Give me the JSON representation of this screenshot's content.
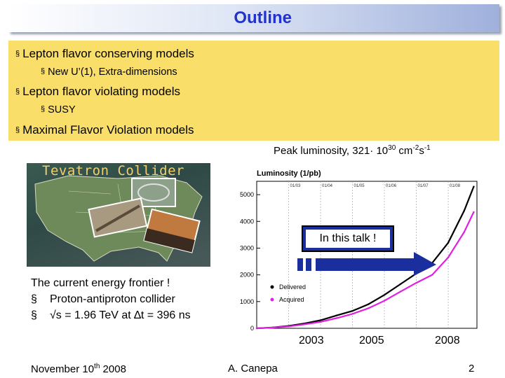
{
  "slide": {
    "title": "Outline",
    "bullets": [
      {
        "text": "Lepton flavor conserving models",
        "sub": "New U’(1), Extra-dimensions"
      },
      {
        "text": "Lepton flavor violating models",
        "sub": "SUSY"
      },
      {
        "text": "Maximal Flavor Violation models",
        "sub": ""
      }
    ],
    "bullet_glyph": "§",
    "peak_label": "Peak luminosity, 321· 10",
    "peak_exp": "30",
    "peak_unit": " cm",
    "peak_unit_exp1": "-2",
    "peak_s": "s",
    "peak_unit_exp2": "-1",
    "map_title": "Tevatron Collider",
    "frontier_lines": [
      "The current energy frontier !",
      "Proton-antiproton collider",
      "√s = 1.96 TeV at ∆t = 396 ns"
    ],
    "callout": "In this talk !",
    "footer_date_pre": "November 10",
    "footer_date_sup": "th",
    "footer_date_post": " 2008",
    "footer_author": "A. Canepa",
    "footer_page": "2"
  },
  "chart_data": {
    "type": "line",
    "title": "Luminosity (1/pb)",
    "yticks": [
      0,
      1000,
      2000,
      3000,
      4000,
      5000
    ],
    "ylim": [
      0,
      5500
    ],
    "top_labels": [
      "01/03",
      "01/04",
      "01/05",
      "01/06",
      "01/07",
      "01/08"
    ],
    "x_year_labels": [
      "2003",
      "2005",
      "2008"
    ],
    "legend": [
      "Delivered",
      "Acquired"
    ],
    "colors": {
      "Delivered": "#000000",
      "Acquired": "#e020e0"
    },
    "series": [
      {
        "name": "Delivered",
        "x": [
          2002.0,
          2002.5,
          2003.0,
          2003.5,
          2004.0,
          2004.5,
          2005.0,
          2005.5,
          2006.0,
          2006.5,
          2007.0,
          2007.5,
          2008.0,
          2008.5,
          2008.8
        ],
        "values": [
          0,
          30,
          90,
          180,
          300,
          480,
          650,
          900,
          1250,
          1650,
          2050,
          2450,
          3200,
          4400,
          5300
        ]
      },
      {
        "name": "Acquired",
        "x": [
          2002.0,
          2002.5,
          2003.0,
          2003.5,
          2004.0,
          2004.5,
          2005.0,
          2005.5,
          2006.0,
          2006.5,
          2007.0,
          2007.5,
          2008.0,
          2008.5,
          2008.8
        ],
        "values": [
          0,
          25,
          70,
          150,
          240,
          380,
          540,
          750,
          1030,
          1370,
          1700,
          2000,
          2650,
          3600,
          4350
        ]
      }
    ]
  }
}
